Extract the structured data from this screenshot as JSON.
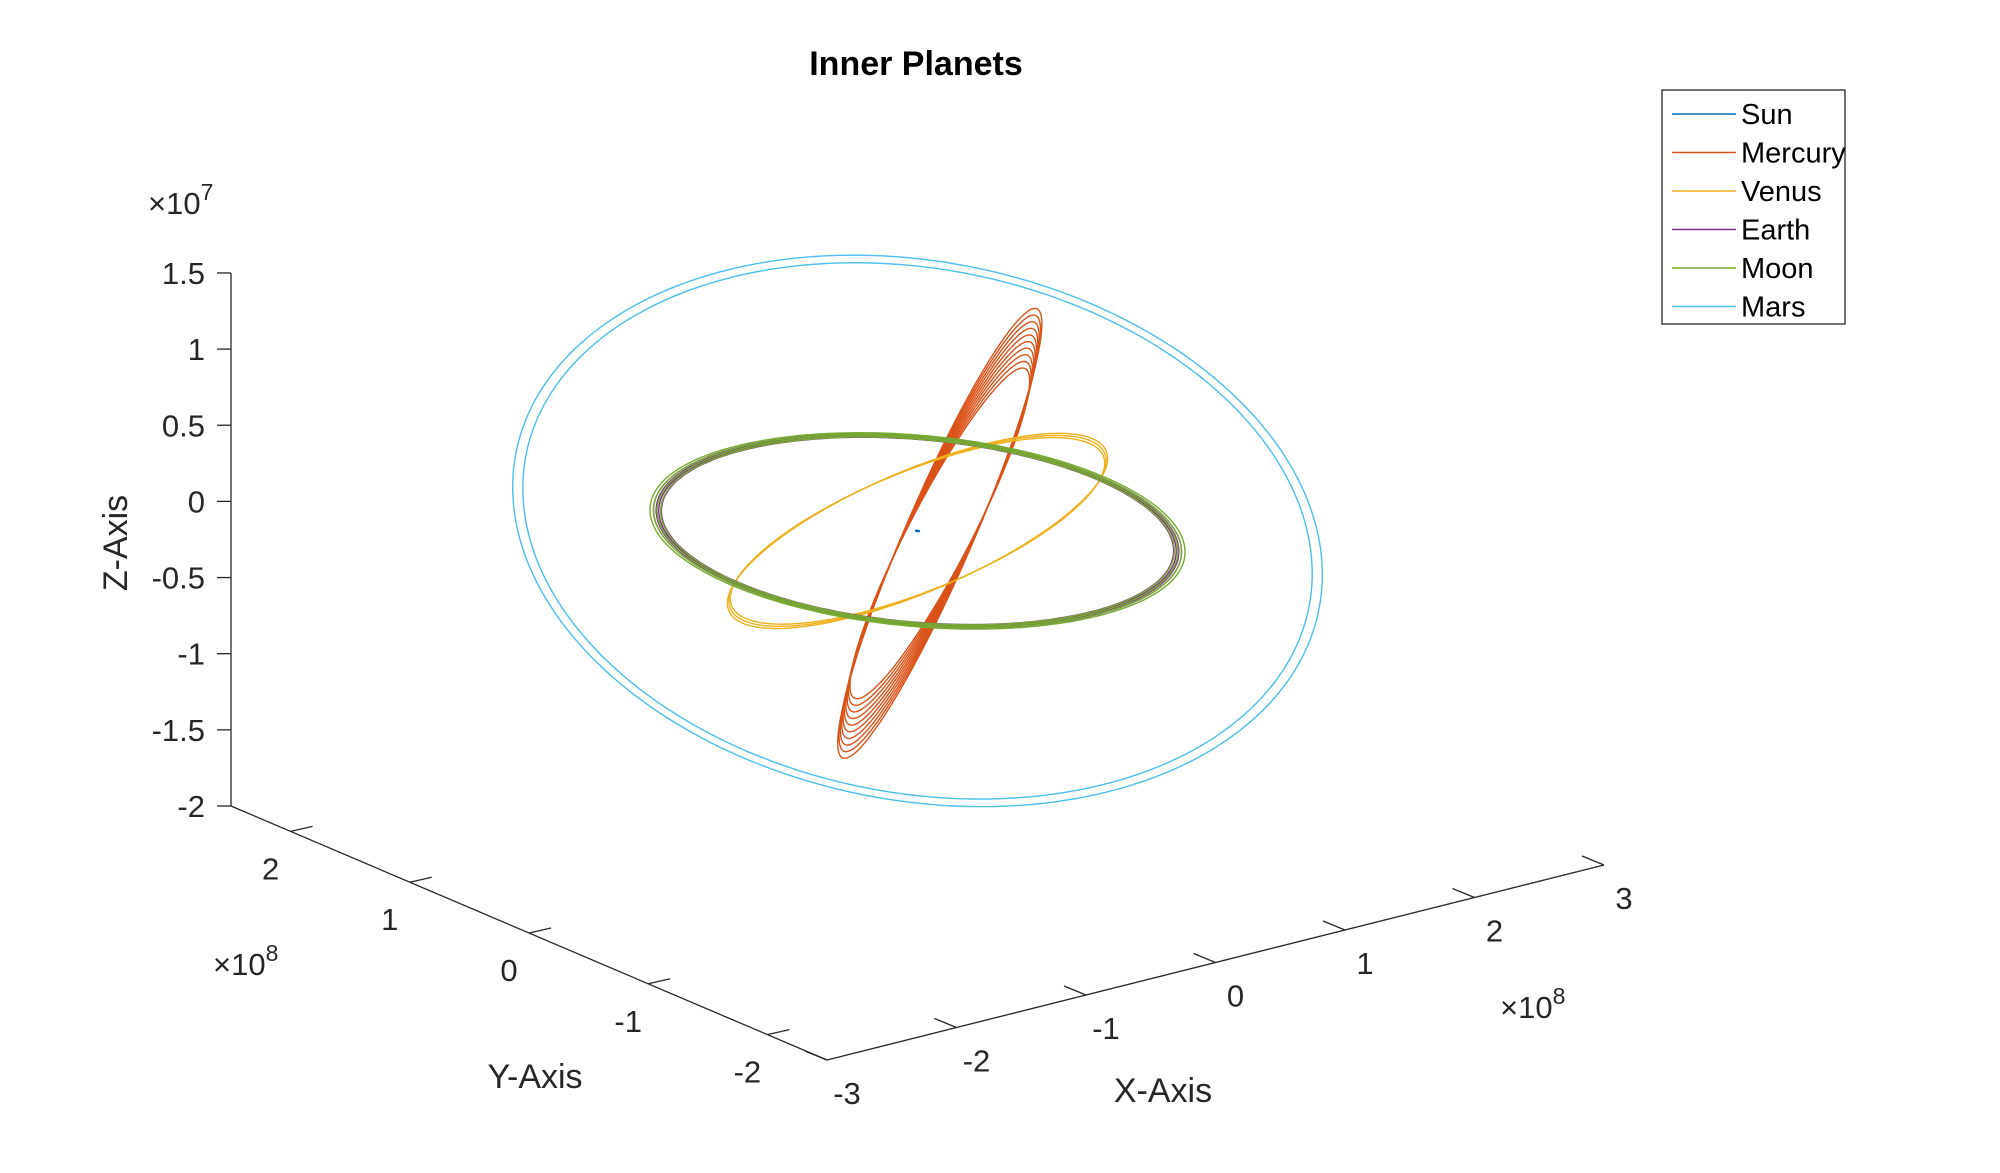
{
  "chart_data": {
    "type": "line",
    "title": "Inner Planets",
    "xlabel": "X-Axis",
    "ylabel": "Y-Axis",
    "zlabel": "Z-Axis",
    "x_multiplier": "×10",
    "x_multiplier_exp": "8",
    "y_multiplier": "×10",
    "y_multiplier_exp": "8",
    "z_multiplier": "×10",
    "z_multiplier_exp": "7",
    "x_ticks": [
      "-3",
      "-2",
      "-1",
      "0",
      "1",
      "2",
      "3"
    ],
    "y_ticks": [
      "-2",
      "-1",
      "0",
      "1",
      "2"
    ],
    "z_ticks": [
      "1.5",
      "1",
      "0.5",
      "0",
      "-0.5",
      "-1",
      "-1.5",
      "-2"
    ],
    "xlim": [
      -3,
      3
    ],
    "ylim": [
      -2.5,
      2.5
    ],
    "zlim": [
      -2,
      1.5
    ],
    "grid": false,
    "legend_position": "top-right",
    "series": [
      {
        "name": "Sun",
        "color": "#0072BD",
        "orbit": {
          "center_x": 0,
          "center_y": 0,
          "radius": 0.01,
          "z_amp": 0.0,
          "phase": 0,
          "loops": 1,
          "spread": 0
        }
      },
      {
        "name": "Mercury",
        "color": "#D95319",
        "orbit": {
          "center_x": 0.08,
          "center_y": -0.1,
          "radius": 0.58,
          "z_amp": 1.45,
          "phase": 2.1,
          "loops": 10,
          "spread": 0.12
        }
      },
      {
        "name": "Venus",
        "color": "#EDB120",
        "orbit": {
          "center_x": 0.0,
          "center_y": 0.0,
          "radius": 1.08,
          "z_amp": 0.55,
          "phase": 2.3,
          "loops": 3,
          "spread": 0.015
        }
      },
      {
        "name": "Earth",
        "color": "#7E2F8E",
        "orbit": {
          "center_x": 0.0,
          "center_y": 0.0,
          "radius": 1.5,
          "z_amp": 0.05,
          "phase": 0,
          "loops": 4,
          "spread": 0.03
        }
      },
      {
        "name": "Moon",
        "color": "#77AC30",
        "orbit": {
          "center_x": 0.0,
          "center_y": 0.0,
          "radius": 1.52,
          "z_amp": 0.05,
          "phase": 0,
          "loops": 4,
          "spread": 0.04
        }
      },
      {
        "name": "Mars",
        "color": "#4DBEEE",
        "orbit": {
          "center_x": 0.0,
          "center_y": 0.0,
          "radius": 2.3,
          "z_amp": 0.9,
          "phase": 0.6,
          "loops": 2,
          "spread": 0.025
        }
      }
    ]
  }
}
